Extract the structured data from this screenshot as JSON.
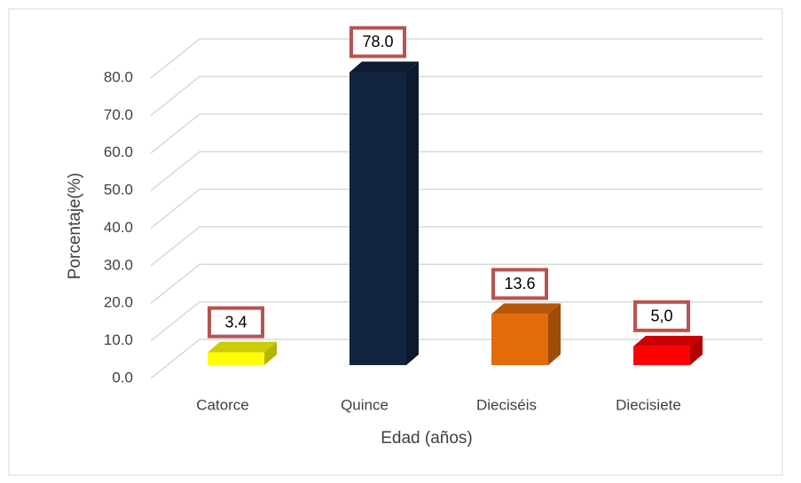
{
  "chart_data": {
    "type": "bar3d",
    "categories": [
      "Catorce",
      "Quince",
      "Dieciséis",
      "Diecisiete"
    ],
    "values": [
      3.4,
      78.0,
      13.6,
      5.0
    ],
    "value_labels": [
      "3.4",
      "78.0",
      "13.6",
      "5,0"
    ],
    "colors": [
      "#ffff00",
      "#12233f",
      "#e36c0a",
      "#ff0000"
    ],
    "ylim": [
      0,
      80
    ],
    "yticks": [
      {
        "value": 0,
        "label": "0.0"
      },
      {
        "value": 10,
        "label": "10.0"
      },
      {
        "value": 20,
        "label": "20.0"
      },
      {
        "value": 30,
        "label": "30.0"
      },
      {
        "value": 40,
        "label": "40.0"
      },
      {
        "value": 50,
        "label": "50.0"
      },
      {
        "value": 60,
        "label": "60.0"
      },
      {
        "value": 70,
        "label": "70.0"
      },
      {
        "value": 80,
        "label": "80.0"
      }
    ],
    "ylabel": "Porcentaje(%)",
    "xlabel": "Edad (años)",
    "grid": true
  }
}
